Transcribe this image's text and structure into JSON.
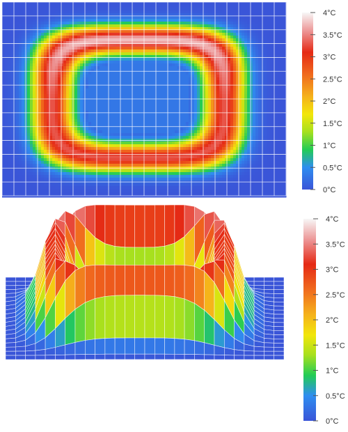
{
  "chart_data": [
    {
      "type": "heatmap",
      "view": "top-down 2D map",
      "title": "",
      "xlabel": "",
      "ylabel": "",
      "colormap": "blue-green-yellow-orange-red-white",
      "grid": true,
      "grid_columns": 24,
      "grid_rows": 14,
      "colorbar": {
        "placement": "right",
        "range": [
          0,
          4
        ],
        "unit": "°C",
        "ticks": [
          0,
          0.5,
          1,
          1.5,
          2,
          2.5,
          3,
          3.5,
          4
        ],
        "tick_labels": [
          "0°C",
          "0.5°C",
          "1°C",
          "1.5°C",
          "2°C",
          "2.5°C",
          "3°C",
          "3.5°C",
          "4°C"
        ]
      },
      "pattern": {
        "shape": "closed rounded-rectangle ring",
        "background_value": 0,
        "ring_peak_value": 3.3,
        "inner_region_value": 0.3
      }
    },
    {
      "type": "surface",
      "view": "3D surface with mesh grid",
      "title": "",
      "xlabel": "",
      "ylabel": "",
      "colormap": "blue-green-yellow-orange-red-white",
      "grid": true,
      "colorbar": {
        "placement": "right",
        "range": [
          0,
          4
        ],
        "unit": "°C",
        "ticks": [
          0,
          0.5,
          1,
          1.5,
          2,
          2.5,
          3,
          3.5,
          4
        ],
        "tick_labels": [
          "0°C",
          "0.5°C",
          "1°C",
          "1.5°C",
          "2°C",
          "2.5°C",
          "3°C",
          "3.5°C",
          "4°C"
        ]
      },
      "pattern": {
        "shape": "raised ring with depressed center",
        "background_value": 0,
        "ring_peak_value": 3.3,
        "inner_region_value": 0.8
      }
    }
  ],
  "colors": {
    "colormap_stops": [
      {
        "v": 0.0,
        "color": "#3a55d8"
      },
      {
        "v": 0.5,
        "color": "#2f8ef0"
      },
      {
        "v": 0.9,
        "color": "#22cc55"
      },
      {
        "v": 1.3,
        "color": "#a6e01e"
      },
      {
        "v": 1.7,
        "color": "#f2e60a"
      },
      {
        "v": 2.1,
        "color": "#f5b21b"
      },
      {
        "v": 2.6,
        "color": "#f06a1e"
      },
      {
        "v": 3.1,
        "color": "#e52a15"
      },
      {
        "v": 3.55,
        "color": "#ec8e8e"
      },
      {
        "v": 4.0,
        "color": "#f7f7f7"
      }
    ],
    "grid_line": "#ffffff",
    "background": "#ffffff"
  }
}
